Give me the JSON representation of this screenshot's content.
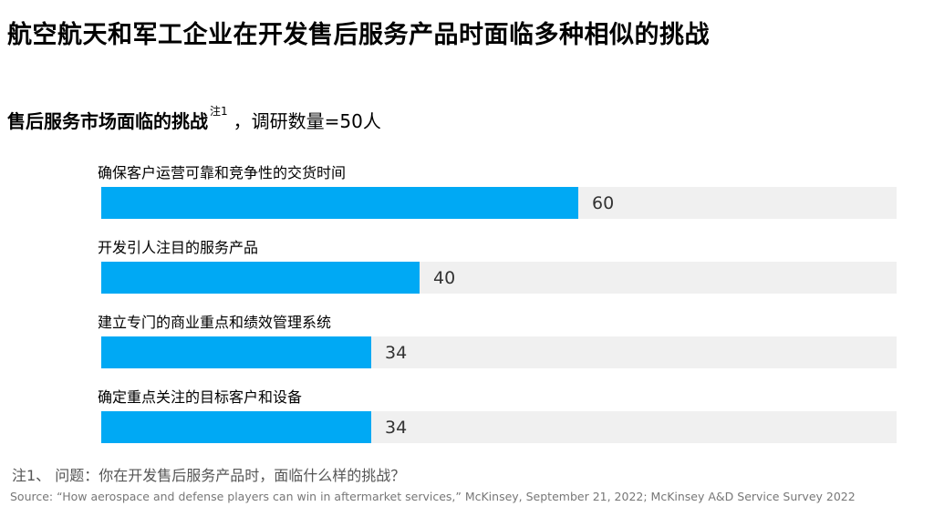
{
  "title": "航空航天和军工企业在开发售后服务产品时面临多种相似的挑战",
  "subtitle": {
    "text": "售后服务市场面临的挑战",
    "note_mark": "注1",
    "survey": "，调研数量=50人"
  },
  "chart_data": {
    "type": "bar",
    "orientation": "horizontal",
    "categories": [
      "确保客户运营可靠和竞争性的交货时间",
      "开发引人注目的服务产品",
      "建立专门的商业重点和绩效管理系统",
      "确定重点关注的目标客户和设备"
    ],
    "values": [
      60,
      40,
      34,
      34
    ],
    "xlim": [
      0,
      100
    ],
    "bar_color": "#00a9f4",
    "track_color": "#f0f0f0"
  },
  "footnote": "注1、 问题：你在开发售后服务产品时，面临什么样的挑战？",
  "source": "Source: “How aerospace and defense players can win in aftermarket services,” McKinsey, September 21, 2022; McKinsey A&D Service Survey 2022"
}
